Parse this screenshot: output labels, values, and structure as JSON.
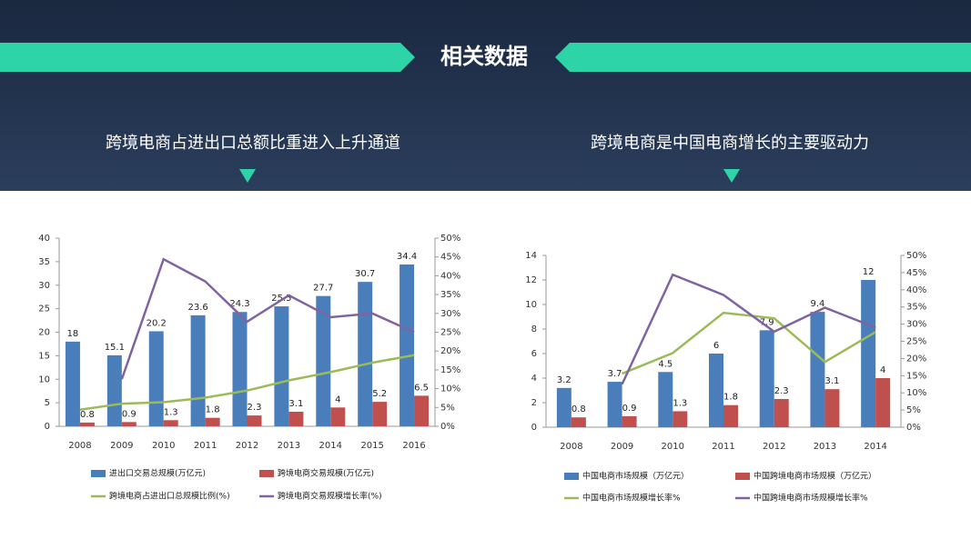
{
  "header": {
    "title": "相关数据",
    "left_subtitle": "跨境电商占进出口总额比重进入上升通道",
    "right_subtitle": "跨境电商是中国电商增长的主要驱动力"
  },
  "chart_data": [
    {
      "type": "bar",
      "categories": [
        "2008",
        "2009",
        "2010",
        "2011",
        "2012",
        "2013",
        "2014",
        "2015",
        "2016"
      ],
      "ylim": [
        0,
        40
      ],
      "yticks": [
        0,
        5,
        10,
        15,
        20,
        25,
        30,
        35,
        40
      ],
      "y2lim": [
        0,
        50
      ],
      "y2ticks": [
        {
          "value": 0,
          "label": "0%"
        },
        {
          "value": 5,
          "label": "5%"
        },
        {
          "value": 10,
          "label": "10%"
        },
        {
          "value": 15,
          "label": "15%"
        },
        {
          "value": 20,
          "label": "20%"
        },
        {
          "value": 25,
          "label": "25%"
        },
        {
          "value": 30,
          "label": "30%"
        },
        {
          "value": 35,
          "label": "35%"
        },
        {
          "value": 40,
          "label": "40%"
        },
        {
          "value": 45,
          "label": "45%"
        },
        {
          "value": 50,
          "label": "50%"
        }
      ],
      "legend": "bottom",
      "series": [
        {
          "name": "进出口交易总规模(万亿元)",
          "color": "#4a7ebb",
          "values": [
            18,
            15.1,
            20.2,
            23.6,
            24.3,
            25.5,
            27.7,
            30.7,
            34.4
          ]
        },
        {
          "name": "跨境电商交易规模(万亿元)",
          "color": "#c0504d",
          "values": [
            0.8,
            0.9,
            1.3,
            1.8,
            2.3,
            3.1,
            4,
            5.2,
            6.5
          ]
        },
        {
          "name": "跨境电商占进出口总规模比例(%)",
          "color": "#9bbb59",
          "axis": "y2",
          "values": [
            4.4,
            6,
            6.4,
            7.6,
            9.5,
            12.2,
            14.4,
            16.9,
            18.9
          ]
        },
        {
          "name": "跨境电商交易规模增长率(%)",
          "color": "#8064a2",
          "axis": "y2",
          "values": [
            null,
            12.5,
            44.4,
            38.5,
            27.8,
            34.8,
            29,
            30,
            25
          ]
        }
      ]
    },
    {
      "type": "bar",
      "categories": [
        "2008",
        "2009",
        "2010",
        "2011",
        "2012",
        "2013",
        "2014"
      ],
      "ylim": [
        0,
        14
      ],
      "yticks": [
        0,
        2,
        4,
        6,
        8,
        10,
        12,
        14
      ],
      "y2lim": [
        0,
        50
      ],
      "y2ticks": [
        {
          "value": 0,
          "label": "0%"
        },
        {
          "value": 5,
          "label": "5%"
        },
        {
          "value": 10,
          "label": "10%"
        },
        {
          "value": 15,
          "label": "15%"
        },
        {
          "value": 20,
          "label": "20%"
        },
        {
          "value": 25,
          "label": "25%"
        },
        {
          "value": 30,
          "label": "30%"
        },
        {
          "value": 35,
          "label": "35%"
        },
        {
          "value": 40,
          "label": "40%"
        },
        {
          "value": 45,
          "label": "45%"
        },
        {
          "value": 50,
          "label": "50%"
        }
      ],
      "legend": "bottom",
      "series": [
        {
          "name": "中国电商市场规模（万亿元）",
          "color": "#4a7ebb",
          "values": [
            3.2,
            3.7,
            4.5,
            6,
            7.9,
            9.4,
            12
          ]
        },
        {
          "name": "中国跨境电商市场规模（万亿元）",
          "color": "#c0504d",
          "values": [
            0.8,
            0.9,
            1.3,
            1.8,
            2.3,
            3.1,
            4
          ]
        },
        {
          "name": "中国电商市场规模增长率%",
          "color": "#9bbb59",
          "axis": "y2",
          "values": [
            null,
            15.6,
            21.6,
            33.3,
            31.7,
            19,
            27.7
          ]
        },
        {
          "name": "中国跨境电商市场规模增长率%",
          "color": "#8064a2",
          "axis": "y2",
          "values": [
            null,
            12.5,
            44.4,
            38.5,
            27.8,
            34.8,
            29
          ]
        }
      ]
    }
  ]
}
